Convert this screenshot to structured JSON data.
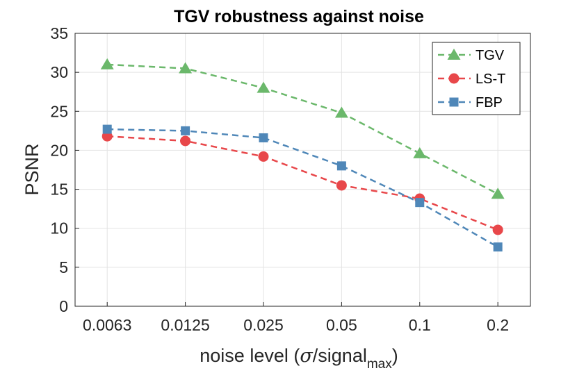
{
  "chart_data": {
    "type": "line",
    "title": "TGV robustness against noise",
    "xlabel": {
      "prefix": "noise level (",
      "sigma": "σ",
      "mid": "/signal",
      "subscript": "max",
      "suffix": ")"
    },
    "ylabel": "PSNR",
    "x_tick_labels": [
      "0.0063",
      "0.0125",
      "0.025",
      "0.05",
      "0.1",
      "0.2"
    ],
    "x_scale": "log2",
    "x_values": [
      0.00625,
      0.0125,
      0.025,
      0.05,
      0.1,
      0.2
    ],
    "xlim": [
      0.0047,
      0.267
    ],
    "ylim": [
      0,
      35
    ],
    "y_ticks": [
      0,
      5,
      10,
      15,
      20,
      25,
      30,
      35
    ],
    "grid": true,
    "legend_position": "top-right",
    "series": [
      {
        "name": "TGV",
        "color": "#6bb86b",
        "marker": "triangle",
        "line": "dashed",
        "values": [
          31.0,
          30.5,
          28.0,
          24.8,
          19.6,
          14.4
        ]
      },
      {
        "name": "LS-T",
        "color": "#e8474a",
        "marker": "circle",
        "line": "dashed",
        "values": [
          21.8,
          21.2,
          19.2,
          15.5,
          13.8,
          9.8
        ]
      },
      {
        "name": "FBP",
        "color": "#4f87b8",
        "marker": "square",
        "line": "dashed",
        "values": [
          22.7,
          22.5,
          21.6,
          18.0,
          13.3,
          7.6
        ]
      }
    ]
  }
}
